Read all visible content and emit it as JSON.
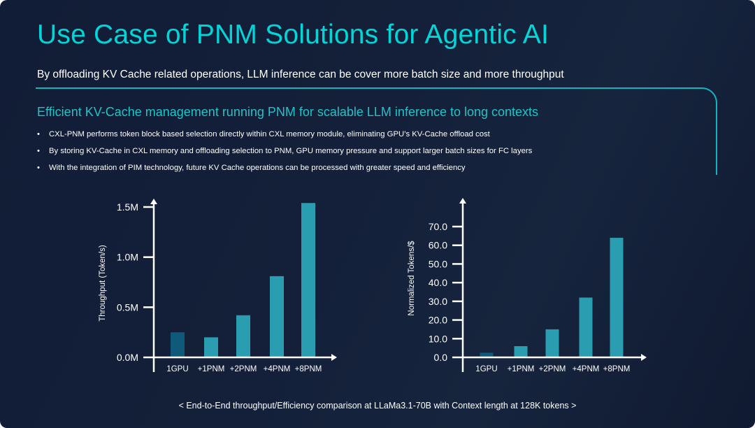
{
  "slide": {
    "title": "Use Case of PNM Solutions for Agentic AI",
    "subtitle": "By offloading KV Cache related operations, LLM inference can be cover more batch size and more throughput",
    "section_heading": "Efficient KV-Cache management running PNM for scalable LLM inference to long contexts",
    "bullet_glyph": "•",
    "bullets": [
      "CXL-PNM performs token block  based selection directly within CXL memory module, eliminating GPU’s KV-Cache offload cost",
      "By storing  KV-Cache in CXL memory and offloading selection to PNM,  GPU memory pressure and support larger batch sizes for FC layers",
      "With the integration of PIM technology, future KV Cache operations can be processed with greater speed and efficiency"
    ],
    "caption": "< End-to-End throughput/Efficiency comparison at LLaMa3.1-70B with Context length at 128K tokens >",
    "colors": {
      "accent": "#00d5d8",
      "bar": "#2b9db0",
      "bar_baseline": "#0e5a78",
      "background": "#131e36"
    }
  },
  "chart_data": [
    {
      "type": "bar",
      "title": "",
      "xlabel": "",
      "ylabel": "Throughput (Token/s)",
      "categories": [
        "1GPU",
        "+1PNM",
        "+2PNM",
        "+4PNM",
        "+8PNM"
      ],
      "values": [
        250000,
        200000,
        420000,
        810000,
        1540000
      ],
      "yticks": [
        0,
        500000,
        1000000,
        1500000
      ],
      "ytick_labels": [
        "0.0M",
        "0.5M",
        "1.0M",
        "1.5M"
      ],
      "ylim": [
        0,
        1500000
      ],
      "grid": false,
      "bar_colors": [
        "#0e5a78",
        "#2b9db0",
        "#2b9db0",
        "#2b9db0",
        "#2b9db0"
      ]
    },
    {
      "type": "bar",
      "title": "",
      "xlabel": "",
      "ylabel": "Normalized Tokens/$",
      "categories": [
        "1GPU",
        "+1PNM",
        "+2PNM",
        "+4PNM",
        "+8PNM"
      ],
      "values": [
        2.5,
        6.0,
        15.0,
        32.0,
        64.0
      ],
      "yticks": [
        0,
        10,
        20,
        30,
        40,
        50,
        60,
        70
      ],
      "ytick_labels": [
        "0.0",
        "10.0",
        "20.0",
        "30.0",
        "40.0",
        "50.0",
        "60.0",
        "70.0"
      ],
      "ylim": [
        0,
        70
      ],
      "grid": false,
      "bar_colors": [
        "#0e5a78",
        "#2b9db0",
        "#2b9db0",
        "#2b9db0",
        "#2b9db0"
      ]
    }
  ]
}
